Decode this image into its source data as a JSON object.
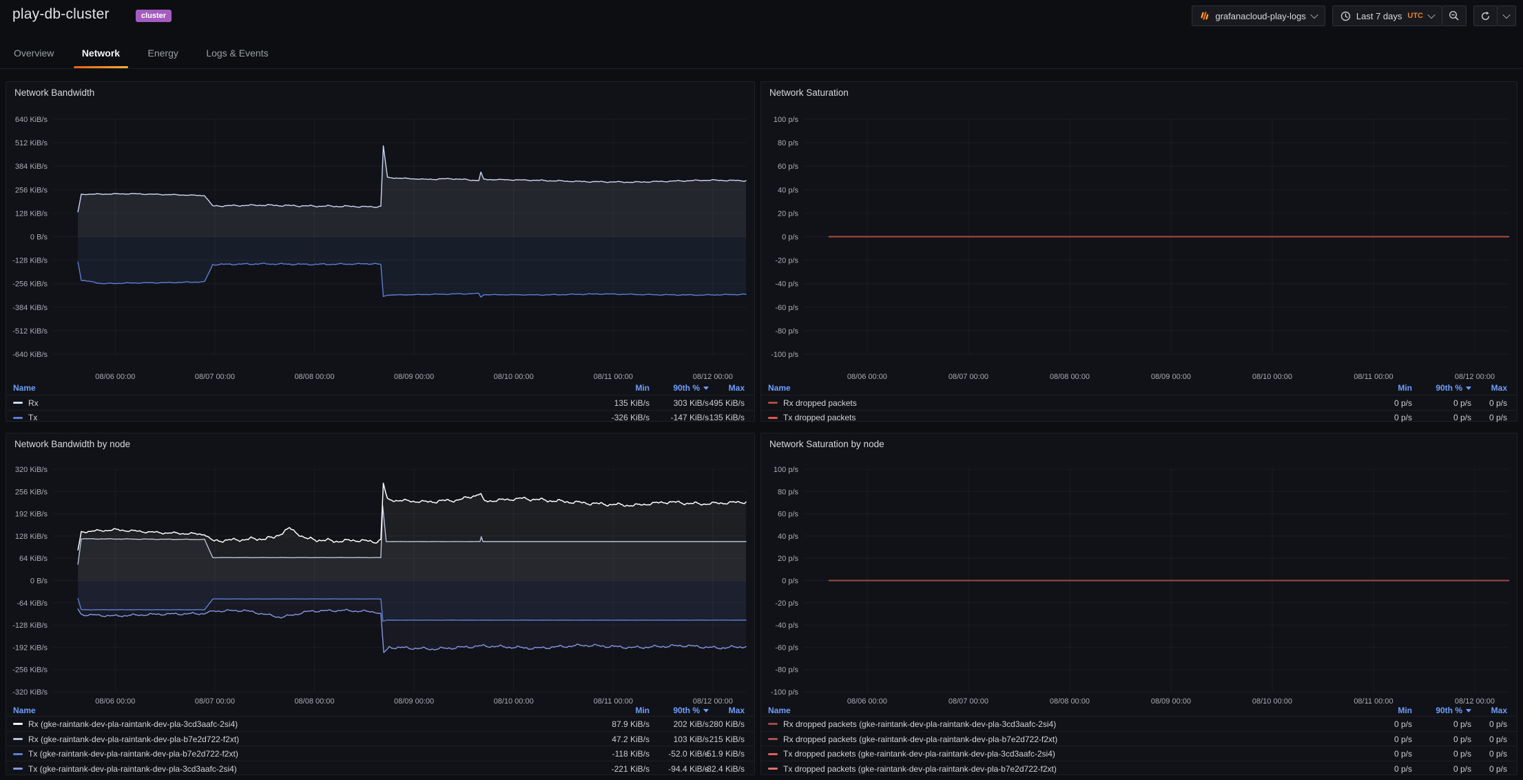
{
  "header": {
    "title": "play-db-cluster",
    "tag": "cluster"
  },
  "toolbar": {
    "datasource": "grafanacloud-play-logs",
    "time_range": "Last 7 days",
    "timezone": "UTC"
  },
  "tabs": [
    {
      "label": "Overview",
      "active": false
    },
    {
      "label": "Network",
      "active": true
    },
    {
      "label": "Energy",
      "active": false
    },
    {
      "label": "Logs & Events",
      "active": false
    }
  ],
  "legend_headers": {
    "name": "Name",
    "min": "Min",
    "p90": "90th %",
    "max": "Max"
  },
  "time_window_hours": 167,
  "x_tick_hours": [
    15,
    39,
    63,
    87,
    111,
    135,
    159
  ],
  "x_ticks": [
    "08/06 00:00",
    "08/07 00:00",
    "08/08 00:00",
    "08/09 00:00",
    "08/10 00:00",
    "08/11 00:00",
    "08/12 00:00"
  ],
  "panels": [
    {
      "title": "Network Bandwidth",
      "y_max": 640,
      "y_ticks": [
        "640 KiB/s",
        "512 KiB/s",
        "384 KiB/s",
        "256 KiB/s",
        "128 KiB/s",
        "0 B/s",
        "-128 KiB/s",
        "-256 KiB/s",
        "-384 KiB/s",
        "-512 KiB/s",
        "-640 KiB/s"
      ],
      "series": [
        {
          "label": "Rx",
          "color": "#cdd7f6",
          "fill": 0.1,
          "width": 1.4,
          "min": "135 KiB/s",
          "p90": "303 KiB/s",
          "max": "495 KiB/s",
          "keyframes": [
            [
              6,
              135,
              0
            ],
            [
              6.8,
              231,
              3
            ],
            [
              19,
              234,
              3
            ],
            [
              30,
              228,
              3
            ],
            [
              36.5,
              224,
              2
            ],
            [
              38.5,
              167,
              5
            ],
            [
              50,
              172,
              6
            ],
            [
              62,
              167,
              6
            ],
            [
              72,
              165,
              5
            ],
            [
              77.5,
              162,
              4
            ],
            [
              79,
              166,
              0
            ],
            [
              79.6,
              495,
              0
            ],
            [
              80.6,
              322,
              3
            ],
            [
              90,
              312,
              4
            ],
            [
              96,
              316,
              4
            ],
            [
              102.6,
              306,
              3
            ],
            [
              103.1,
              352,
              0
            ],
            [
              103.8,
              312,
              3
            ],
            [
              115,
              308,
              4
            ],
            [
              128,
              300,
              4
            ],
            [
              140,
              297,
              4
            ],
            [
              150,
              303,
              4
            ],
            [
              158,
              308,
              4
            ],
            [
              167,
              305,
              3
            ]
          ]
        },
        {
          "label": "Tx",
          "color": "#5b7ed7",
          "fill": 0.1,
          "width": 1.4,
          "min": "-326 KiB/s",
          "p90": "-147 KiB/s",
          "max": "-135 KiB/s",
          "keyframes": [
            [
              6,
              -138,
              0
            ],
            [
              6.8,
              -237,
              3
            ],
            [
              12,
              -256,
              3
            ],
            [
              19,
              -252,
              3
            ],
            [
              28,
              -250,
              3
            ],
            [
              36.5,
              -246,
              2
            ],
            [
              38.5,
              -152,
              5
            ],
            [
              50,
              -148,
              5
            ],
            [
              62,
              -151,
              5
            ],
            [
              72,
              -149,
              4
            ],
            [
              77.5,
              -147,
              4
            ],
            [
              79,
              -152,
              0
            ],
            [
              79.6,
              -326,
              0
            ],
            [
              80.6,
              -318,
              2
            ],
            [
              92,
              -314,
              3
            ],
            [
              102.6,
              -310,
              2
            ],
            [
              103.1,
              -330,
              0
            ],
            [
              103.8,
              -316,
              2
            ],
            [
              118,
              -317,
              3
            ],
            [
              132,
              -312,
              3
            ],
            [
              145,
              -316,
              3
            ],
            [
              156,
              -318,
              3
            ],
            [
              167,
              -314,
              3
            ]
          ]
        }
      ]
    },
    {
      "title": "Network Saturation",
      "y_max": 100,
      "y_ticks": [
        "100 p/s",
        "80 p/s",
        "60 p/s",
        "40 p/s",
        "20 p/s",
        "0 p/s",
        "-20 p/s",
        "-40 p/s",
        "-60 p/s",
        "-80 p/s",
        "-100 p/s"
      ],
      "series": [
        {
          "label": "Rx dropped packets",
          "color": "#b04a45",
          "fill": 0,
          "width": 2,
          "min": "0 p/s",
          "p90": "0 p/s",
          "max": "0 p/s",
          "keyframes": [
            [
              6,
              0,
              0
            ],
            [
              167,
              0,
              0
            ]
          ]
        },
        {
          "label": "Tx dropped packets",
          "color": "#e0564f",
          "fill": 0,
          "width": 2,
          "min": "0 p/s",
          "p90": "0 p/s",
          "max": "0 p/s",
          "keyframes": [
            [
              6,
              0,
              0
            ],
            [
              167,
              0,
              0
            ]
          ]
        }
      ]
    },
    {
      "title": "Network Bandwidth by node",
      "y_max": 320,
      "y_ticks": [
        "320 KiB/s",
        "256 KiB/s",
        "192 KiB/s",
        "128 KiB/s",
        "64 KiB/s",
        "0 B/s",
        "-64 KiB/s",
        "-128 KiB/s",
        "-192 KiB/s",
        "-256 KiB/s",
        "-320 KiB/s"
      ],
      "series": [
        {
          "label": "Rx (gke-raintank-dev-pla-raintank-dev-pla-3cd3aafc-2si4)",
          "color": "#ffffff",
          "fill": 0.055,
          "width": 1.5,
          "min": "87.9 KiB/s",
          "p90": "202 KiB/s",
          "max": "280 KiB/s",
          "keyframes": [
            [
              6,
              88,
              0
            ],
            [
              6.8,
              140,
              4
            ],
            [
              15,
              146,
              4
            ],
            [
              25,
              138,
              4
            ],
            [
              36.5,
              133,
              3
            ],
            [
              38.5,
              114,
              6
            ],
            [
              46,
              118,
              7
            ],
            [
              53,
              122,
              6
            ],
            [
              57,
              150,
              5
            ],
            [
              61,
              120,
              7
            ],
            [
              68,
              113,
              6
            ],
            [
              74,
              116,
              6
            ],
            [
              77.5,
              110,
              5
            ],
            [
              79,
              118,
              0
            ],
            [
              79.6,
              280,
              0
            ],
            [
              80.6,
              232,
              5
            ],
            [
              90,
              226,
              6
            ],
            [
              98,
              232,
              6
            ],
            [
              103.1,
              250,
              0
            ],
            [
              104,
              228,
              5
            ],
            [
              113,
              236,
              6
            ],
            [
              122,
              228,
              6
            ],
            [
              132,
              220,
              6
            ],
            [
              140,
              216,
              5
            ],
            [
              148,
              226,
              6
            ],
            [
              156,
              220,
              5
            ],
            [
              167,
              226,
              4
            ]
          ]
        },
        {
          "label": "Rx (gke-raintank-dev-pla-raintank-dev-pla-b7e2d722-f2xt)",
          "color": "#b9c2d8",
          "fill": 0.06,
          "width": 1.4,
          "min": "47.2 KiB/s",
          "p90": "103 KiB/s",
          "max": "215 KiB/s",
          "keyframes": [
            [
              6,
              47,
              0
            ],
            [
              6.8,
              120,
              1
            ],
            [
              36.5,
              118,
              1
            ],
            [
              38.5,
              66,
              0.4
            ],
            [
              79,
              66,
              0
            ],
            [
              79.45,
              215,
              0
            ],
            [
              80.3,
              112,
              0.4
            ],
            [
              102.9,
              112,
              0
            ],
            [
              103.2,
              126,
              0
            ],
            [
              103.6,
              112,
              0
            ],
            [
              167,
              112,
              0.5
            ]
          ]
        },
        {
          "label": "Tx (gke-raintank-dev-pla-raintank-dev-pla-b7e2d722-f2xt)",
          "color": "#5e7fd4",
          "fill": 0.07,
          "width": 1.4,
          "min": "-118 KiB/s",
          "p90": "-52.0 KiB/s",
          "max": "-51.9 KiB/s",
          "keyframes": [
            [
              6,
              -52,
              0
            ],
            [
              6.8,
              -84,
              0.6
            ],
            [
              36.5,
              -84,
              0.6
            ],
            [
              38.5,
              -53,
              0.3
            ],
            [
              79,
              -53,
              0
            ],
            [
              79.5,
              -117,
              0
            ],
            [
              80.4,
              -114,
              0.3
            ],
            [
              167,
              -114,
              0.6
            ]
          ]
        },
        {
          "label": "Tx (gke-raintank-dev-pla-raintank-dev-pla-3cd3aafc-2si4)",
          "color": "#8598e6",
          "fill": 0.06,
          "width": 1.4,
          "min": "-221 KiB/s",
          "p90": "-94.4 KiB/s",
          "max": "-82.4 KiB/s",
          "keyframes": [
            [
              6,
              -82,
              0
            ],
            [
              6.8,
              -98,
              4
            ],
            [
              15,
              -102,
              4
            ],
            [
              25,
              -97,
              4
            ],
            [
              36.5,
              -95,
              3
            ],
            [
              38.5,
              -88,
              4
            ],
            [
              46,
              -86,
              4
            ],
            [
              55,
              -106,
              4
            ],
            [
              62,
              -88,
              4
            ],
            [
              70,
              -86,
              4
            ],
            [
              77.5,
              -90,
              4
            ],
            [
              79,
              -95,
              0
            ],
            [
              79.7,
              -207,
              0
            ],
            [
              81,
              -192,
              5
            ],
            [
              92,
              -197,
              5
            ],
            [
              104,
              -188,
              5
            ],
            [
              116,
              -195,
              5
            ],
            [
              128,
              -186,
              5
            ],
            [
              140,
              -193,
              5
            ],
            [
              152,
              -187,
              5
            ],
            [
              160,
              -194,
              5
            ],
            [
              167,
              -190,
              4
            ]
          ]
        }
      ]
    },
    {
      "title": "Network Saturation by node",
      "y_max": 100,
      "y_ticks": [
        "100 p/s",
        "80 p/s",
        "60 p/s",
        "40 p/s",
        "20 p/s",
        "0 p/s",
        "-20 p/s",
        "-40 p/s",
        "-60 p/s",
        "-80 p/s",
        "-100 p/s"
      ],
      "series": [
        {
          "label": "Rx dropped packets (gke-raintank-dev-pla-raintank-dev-pla-3cd3aafc-2si4)",
          "color": "#9d4946",
          "fill": 0,
          "width": 2,
          "min": "0 p/s",
          "p90": "0 p/s",
          "max": "0 p/s",
          "keyframes": [
            [
              6,
              0,
              0
            ],
            [
              167,
              0,
              0
            ]
          ]
        },
        {
          "label": "Rx dropped packets (gke-raintank-dev-pla-raintank-dev-pla-b7e2d722-f2xt)",
          "color": "#a85450",
          "fill": 0,
          "width": 2,
          "min": "0 p/s",
          "p90": "0 p/s",
          "max": "0 p/s",
          "keyframes": [
            [
              6,
              0,
              0
            ],
            [
              167,
              0,
              0
            ]
          ]
        },
        {
          "label": "Tx dropped packets (gke-raintank-dev-pla-raintank-dev-pla-3cd3aafc-2si4)",
          "color": "#dd6059",
          "fill": 0,
          "width": 2,
          "min": "0 p/s",
          "p90": "0 p/s",
          "max": "0 p/s",
          "keyframes": [
            [
              6,
              0,
              0
            ],
            [
              167,
              0,
              0
            ]
          ]
        },
        {
          "label": "Tx dropped packets (gke-raintank-dev-pla-raintank-dev-pla-b7e2d722-f2xt)",
          "color": "#e2716b",
          "fill": 0,
          "width": 2,
          "min": "0 p/s",
          "p90": "0 p/s",
          "max": "0 p/s",
          "keyframes": [
            [
              6,
              0,
              0
            ],
            [
              167,
              0,
              0
            ]
          ]
        }
      ]
    }
  ]
}
